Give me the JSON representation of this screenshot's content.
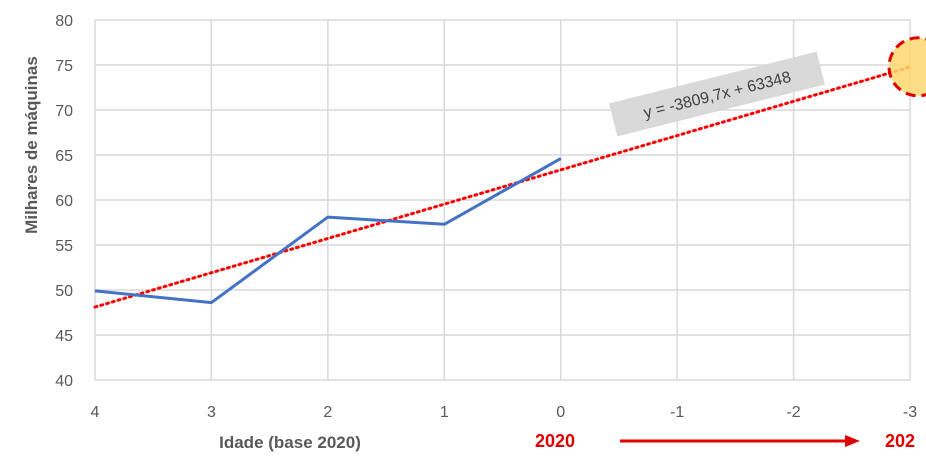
{
  "chart_data": {
    "type": "line",
    "xlabel": "Idade (base 2020)",
    "ylabel": "Milhares de máquinas",
    "x_ticks": [
      "4",
      "3",
      "2",
      "1",
      "0",
      "-1",
      "-2",
      "-3"
    ],
    "xlim": [
      4,
      -3
    ],
    "ylim": [
      40,
      80
    ],
    "y_ticks": [
      40,
      45,
      50,
      55,
      60,
      65,
      70,
      75,
      80
    ],
    "grid": true,
    "series": [
      {
        "x": [
          4,
          3,
          2,
          1,
          0
        ],
        "values": [
          49.9,
          48.6,
          58.1,
          57.3,
          64.6
        ],
        "color": "#4472c4"
      }
    ],
    "trendline": {
      "equation": "y = -3809,7x + 63348",
      "slope": -3.8097,
      "intercept": 63.348,
      "x_range": [
        4,
        -3
      ],
      "color": "#ff0000",
      "style": "dotted"
    },
    "highlight_point": {
      "x": -3,
      "y": 74.8,
      "fill": "#fdd870",
      "stroke": "#e00000"
    },
    "annotations": {
      "start_year": "2020",
      "end_year": "202",
      "arrow_color": "#e00000"
    }
  }
}
